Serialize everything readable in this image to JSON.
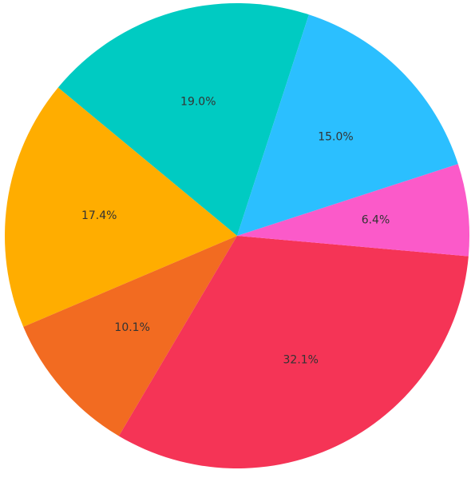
{
  "chart_data": {
    "type": "pie",
    "values": [
      19.0,
      17.4,
      10.1,
      32.1,
      6.4,
      15.0
    ],
    "value_labels": [
      "19.0%",
      "17.4%",
      "10.1%",
      "32.1%",
      "6.4%",
      "15.0%"
    ],
    "colors": [
      "#00cbc2",
      "#ffad00",
      "#f26b21",
      "#f53456",
      "#fb5ac9",
      "#2bbfff"
    ]
  }
}
